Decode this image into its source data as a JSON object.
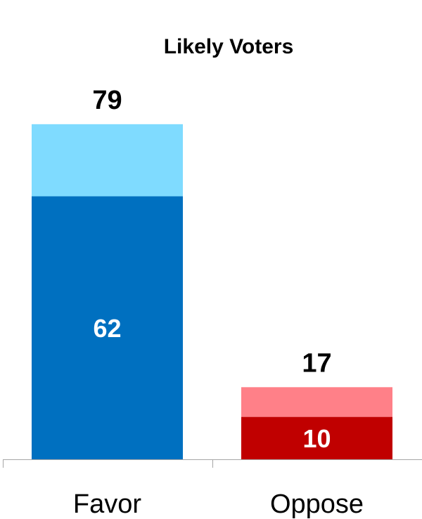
{
  "chart_data": {
    "type": "bar",
    "title": "Likely Voters",
    "categories": [
      "Favor",
      "Oppose"
    ],
    "series": [
      {
        "values": [
          62,
          10
        ]
      },
      {
        "values": [
          17,
          7
        ]
      }
    ],
    "totals": [
      79,
      17
    ],
    "ylim": [
      0,
      100
    ],
    "grid": false,
    "colors": {
      "strong": [
        "#0070c0",
        "#c00000"
      ],
      "light": [
        "#7fdbff",
        "#ff8088"
      ]
    }
  }
}
